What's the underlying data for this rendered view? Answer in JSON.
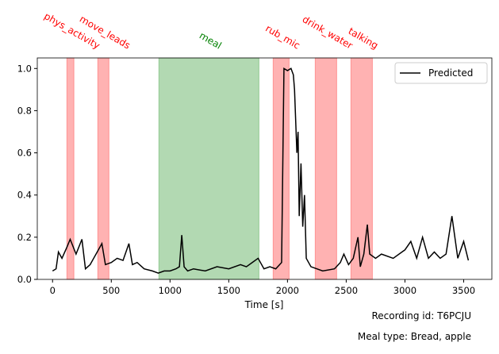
{
  "chart_data": {
    "type": "line",
    "xlabel": "Time [s]",
    "notes": [
      "Recording id: T6PCJU",
      "Meal type: Bread, apple"
    ],
    "xlim": [
      -130,
      3740
    ],
    "ylim": [
      0,
      1.05
    ],
    "xticks": [
      0,
      500,
      1000,
      1500,
      2000,
      2500,
      3000,
      3500
    ],
    "yticks": [
      {
        "value": 0,
        "label": "0.0"
      },
      {
        "value": 0.2,
        "label": "0.2"
      },
      {
        "value": 0.4,
        "label": "0.4"
      },
      {
        "value": 0.6,
        "label": "0.6"
      },
      {
        "value": 0.8,
        "label": "0.8"
      },
      {
        "value": 1.0,
        "label": "1.0"
      }
    ],
    "legend": "upper right",
    "spans": [
      {
        "label": "phys_activity",
        "start": 122,
        "end": 182,
        "color": "#ff0000"
      },
      {
        "label": "move_leads",
        "start": 385,
        "end": 480,
        "color": "#ff0000"
      },
      {
        "label": "meal",
        "start": 905,
        "end": 1757,
        "color": "#008000"
      },
      {
        "label": "rub_mic",
        "start": 1878,
        "end": 2014,
        "color": "#ff0000"
      },
      {
        "label": "drink_water",
        "start": 2236,
        "end": 2419,
        "color": "#ff0000"
      },
      {
        "label": "talking",
        "start": 2540,
        "end": 2723,
        "color": "#ff0000"
      }
    ],
    "series": [
      {
        "name": "Predicted",
        "color": "#000000",
        "x": [
          0,
          30,
          50,
          80,
          120,
          150,
          200,
          250,
          280,
          320,
          350,
          380,
          420,
          450,
          500,
          550,
          600,
          650,
          680,
          720,
          780,
          850,
          900,
          950,
          1000,
          1050,
          1080,
          1100,
          1120,
          1150,
          1200,
          1300,
          1400,
          1500,
          1600,
          1650,
          1700,
          1750,
          1800,
          1850,
          1900,
          1950,
          1970,
          2000,
          2030,
          2050,
          2060,
          2080,
          2090,
          2100,
          2115,
          2130,
          2145,
          2160,
          2200,
          2250,
          2300,
          2400,
          2450,
          2480,
          2520,
          2560,
          2600,
          2620,
          2650,
          2680,
          2700,
          2750,
          2800,
          2900,
          3000,
          3050,
          3100,
          3150,
          3200,
          3250,
          3300,
          3350,
          3400,
          3450,
          3500,
          3540
        ],
        "values": [
          0.04,
          0.05,
          0.13,
          0.1,
          0.15,
          0.19,
          0.12,
          0.19,
          0.05,
          0.07,
          0.1,
          0.13,
          0.17,
          0.07,
          0.08,
          0.1,
          0.09,
          0.17,
          0.07,
          0.08,
          0.05,
          0.04,
          0.03,
          0.04,
          0.04,
          0.05,
          0.06,
          0.21,
          0.06,
          0.04,
          0.05,
          0.04,
          0.06,
          0.05,
          0.07,
          0.06,
          0.08,
          0.1,
          0.05,
          0.06,
          0.05,
          0.08,
          1.0,
          0.99,
          1.0,
          0.97,
          0.9,
          0.6,
          0.7,
          0.3,
          0.55,
          0.25,
          0.4,
          0.1,
          0.06,
          0.05,
          0.04,
          0.05,
          0.08,
          0.12,
          0.07,
          0.1,
          0.2,
          0.06,
          0.12,
          0.26,
          0.12,
          0.1,
          0.12,
          0.1,
          0.14,
          0.18,
          0.1,
          0.2,
          0.1,
          0.13,
          0.1,
          0.12,
          0.3,
          0.1,
          0.18,
          0.09
        ]
      }
    ]
  }
}
